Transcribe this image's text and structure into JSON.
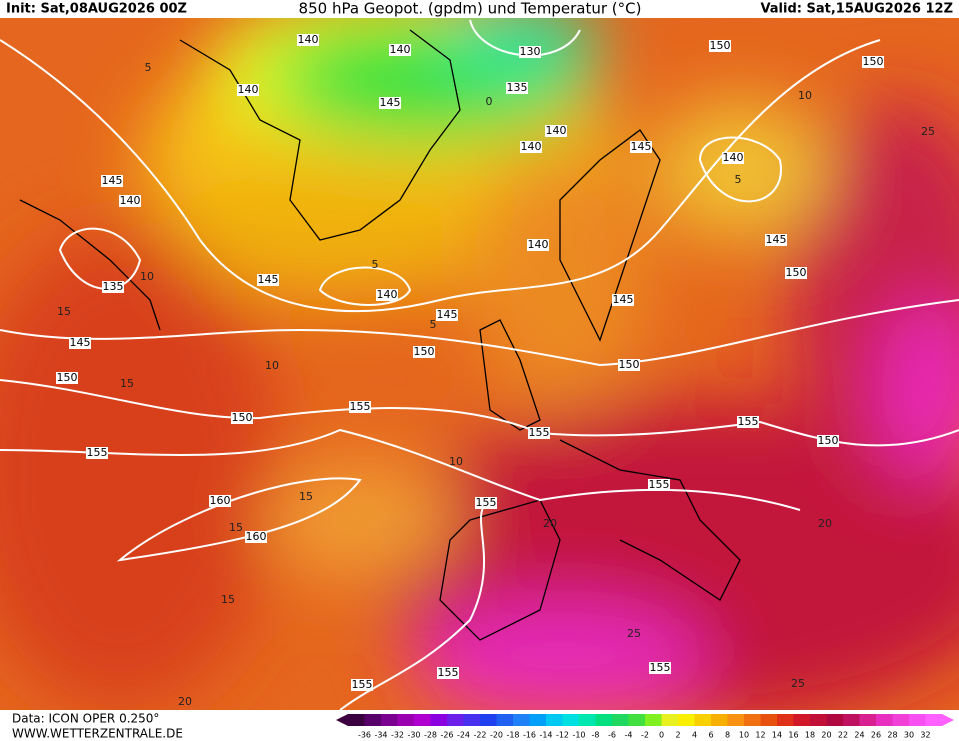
{
  "header": {
    "init": "Init: Sat,08AUG2026 00Z",
    "title": "850 hPa Geopot. (gpdm) und Temperatur (°C)",
    "valid": "Valid: Sat,15AUG2026 12Z"
  },
  "map": {
    "geopotential_labels": [
      140,
      140,
      130,
      135,
      140,
      145,
      140,
      140,
      145,
      140,
      150,
      150,
      145,
      140,
      135,
      145,
      140,
      145,
      140,
      145,
      150,
      145,
      150,
      145,
      150,
      150,
      150,
      155,
      155,
      155,
      150,
      155,
      160,
      160,
      155,
      155,
      155,
      155,
      155
    ],
    "temperature_labels": [
      5,
      10,
      15,
      15,
      10,
      5,
      10,
      15,
      15,
      20,
      20,
      25,
      25,
      10,
      5,
      25,
      20,
      15,
      0,
      5
    ]
  },
  "footer": {
    "data": "Data: ICON OPER 0.250°",
    "site": "WWW.WETTERZENTRALE.DE"
  },
  "legend": {
    "labels": [
      -36,
      -34,
      -32,
      -30,
      -28,
      -26,
      -24,
      -22,
      -20,
      -18,
      -16,
      -14,
      -12,
      -10,
      -8,
      -6,
      -4,
      -2,
      0,
      2,
      4,
      6,
      8,
      10,
      12,
      14,
      16,
      18,
      20,
      22,
      24,
      26,
      28,
      30,
      32
    ]
  }
}
